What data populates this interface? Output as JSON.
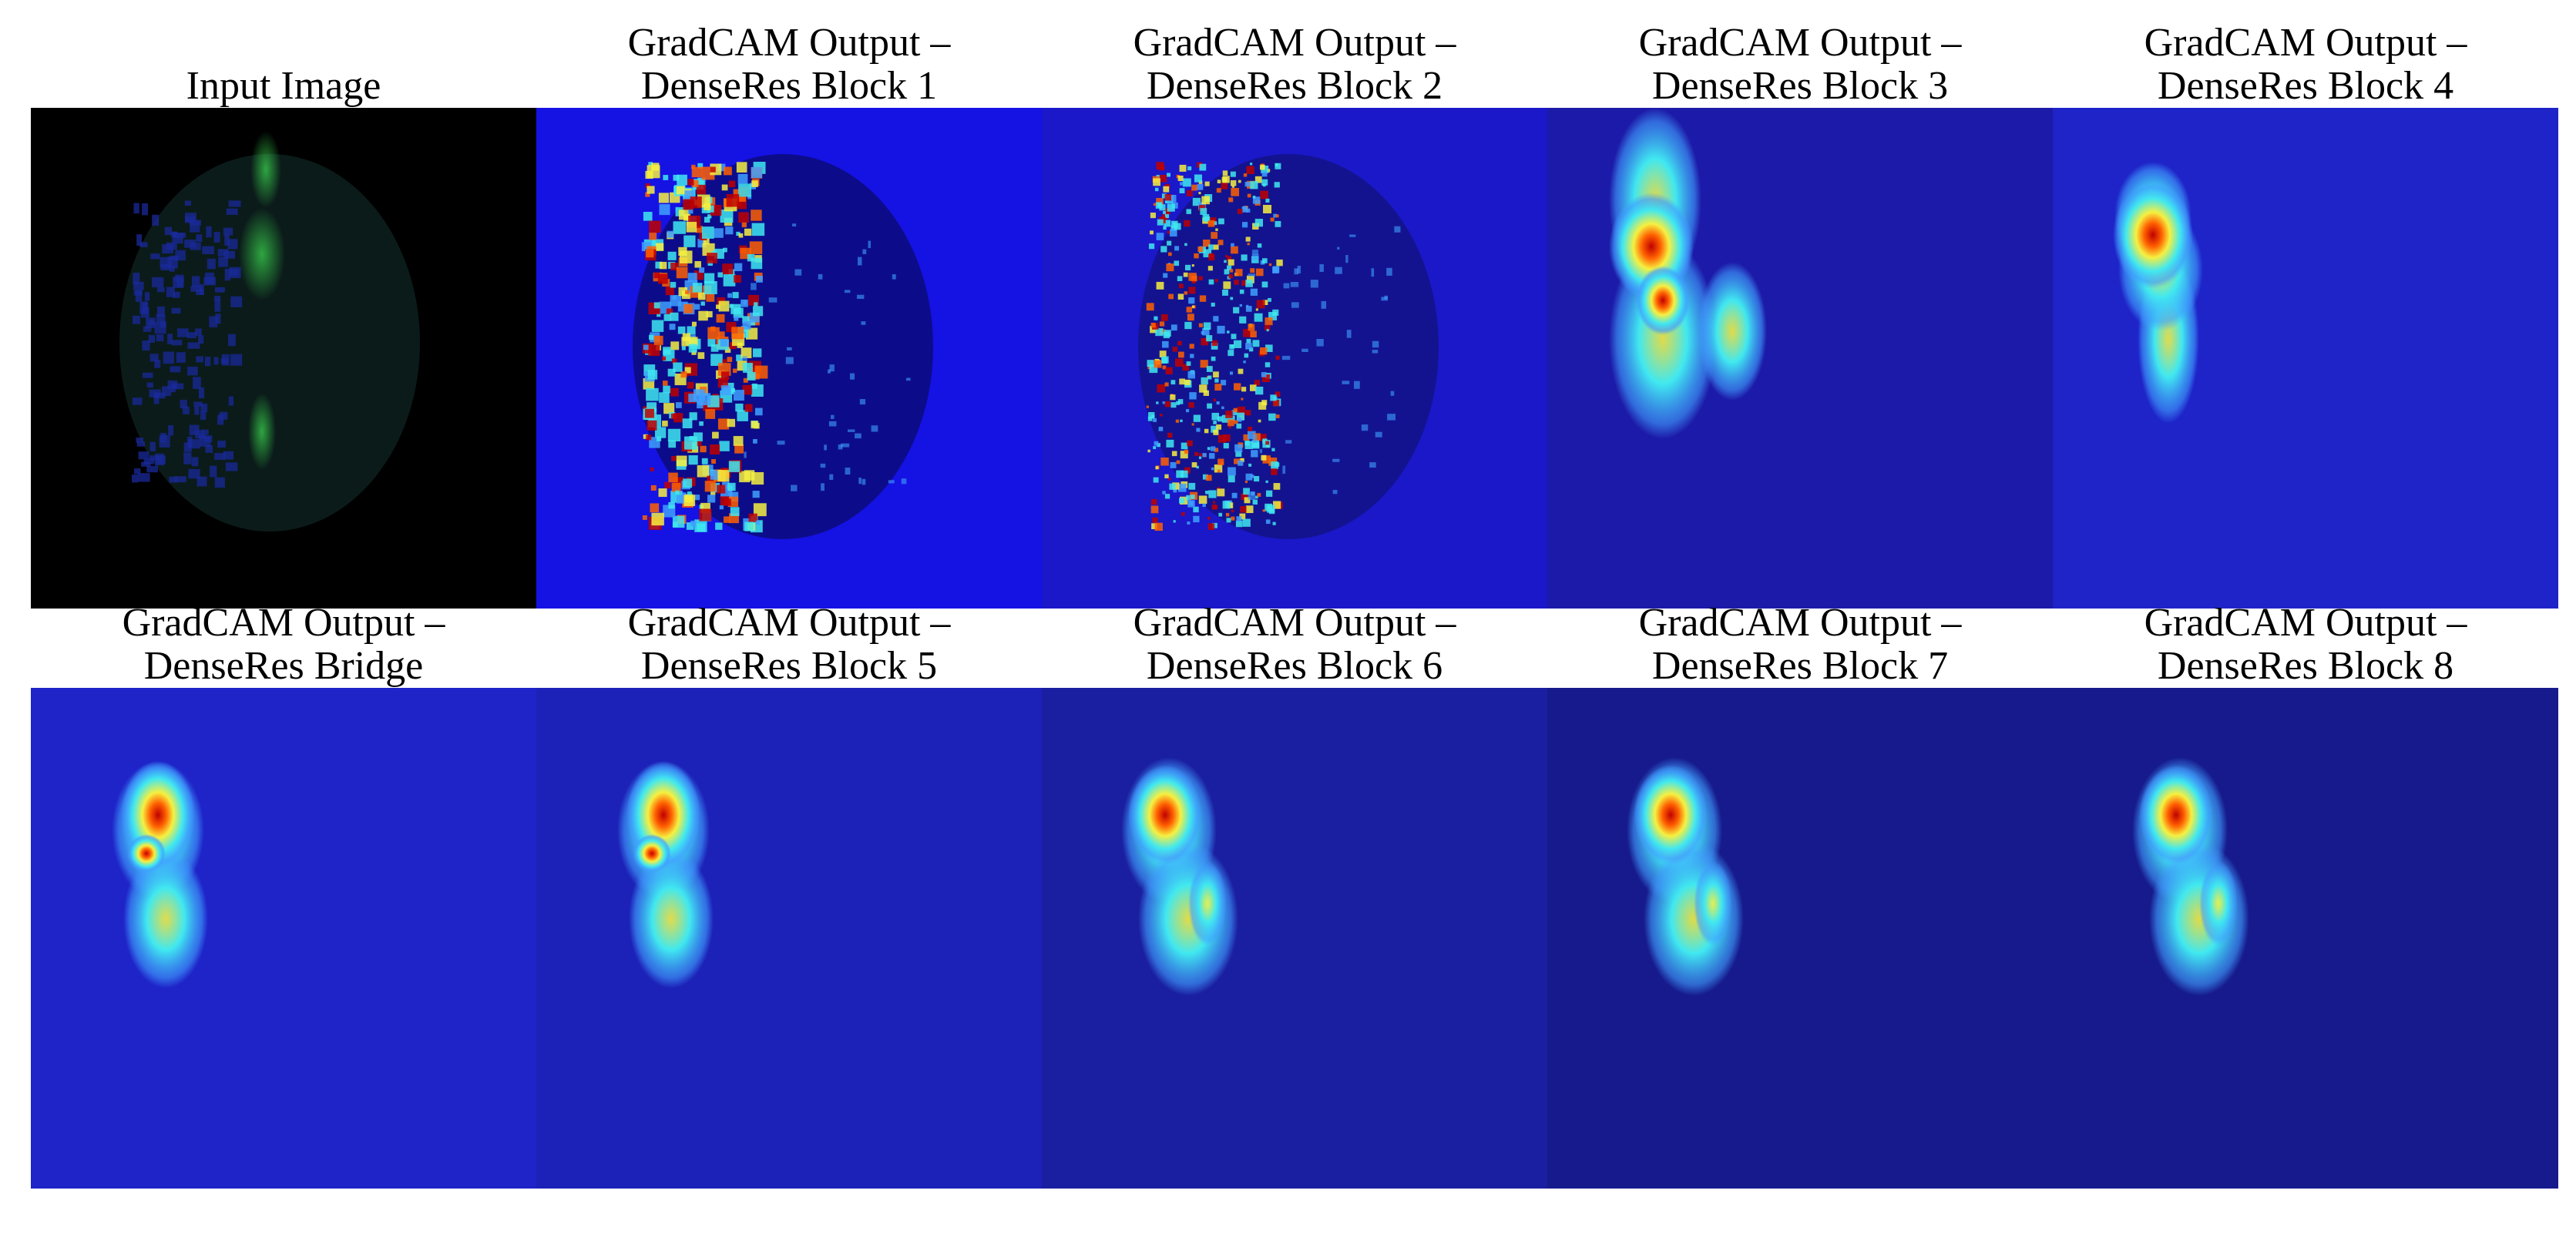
{
  "figure": {
    "panels": [
      {
        "title_line1": "Input Image",
        "title_line2": "",
        "kind": "input",
        "background": "#000000"
      },
      {
        "title_line1": "GradCAM Output –",
        "title_line2": "DenseRes Block 1",
        "kind": "speckle",
        "background": "#1512e4",
        "brain_fill": "#0c0c8a"
      },
      {
        "title_line1": "GradCAM Output –",
        "title_line2": "DenseRes Block 2",
        "kind": "speckle-fine",
        "background": "#1a18c8"
      },
      {
        "title_line1": "GradCAM Output –",
        "title_line2": "DenseRes Block 3",
        "kind": "blob-tall",
        "background": "#1c1aa8"
      },
      {
        "title_line1": "GradCAM Output –",
        "title_line2": "DenseRes Block 4",
        "kind": "blob-mid",
        "background": "#1e24c8"
      },
      {
        "title_line1": "GradCAM Output –",
        "title_line2": "DenseRes Bridge",
        "kind": "blob-low",
        "background": "#1e24c8"
      },
      {
        "title_line1": "GradCAM Output –",
        "title_line2": "DenseRes Block 5",
        "kind": "blob-low",
        "background": "#1c22b8"
      },
      {
        "title_line1": "GradCAM Output –",
        "title_line2": "DenseRes Block 6",
        "kind": "blob-low2",
        "background": "#1a1ea0"
      },
      {
        "title_line1": "GradCAM Output –",
        "title_line2": "DenseRes Block 7",
        "kind": "blob-low2",
        "background": "#161a8c"
      },
      {
        "title_line1": "GradCAM Output –",
        "title_line2": "DenseRes Block 8",
        "kind": "blob-low2",
        "background": "#161a8c"
      }
    ]
  },
  "colormap": {
    "red": "#c00000",
    "orange": "#ff6000",
    "yellow": "#f6f040",
    "cyan": "#40e8f0",
    "lightblue": "#40a0ff"
  }
}
